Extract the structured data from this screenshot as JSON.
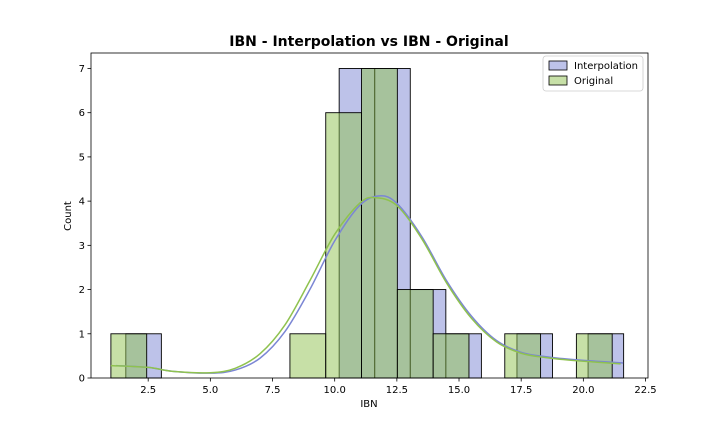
{
  "chart_data": {
    "type": "bar",
    "title": "IBN - Interpolation vs IBN - Original",
    "xlabel": "IBN",
    "ylabel": "Count",
    "xlim": [
      0.2,
      22.6
    ],
    "ylim": [
      0,
      7.35
    ],
    "xticks": [
      2.5,
      5.0,
      7.5,
      10.0,
      12.5,
      15.0,
      17.5,
      20.0,
      22.5
    ],
    "xtick_labels": [
      "2.5",
      "5.0",
      "7.5",
      "10.0",
      "12.5",
      "15.0",
      "17.5",
      "20.0",
      "22.5"
    ],
    "yticks": [
      0,
      1,
      2,
      3,
      4,
      5,
      6,
      7
    ],
    "ytick_labels": [
      "0",
      "1",
      "2",
      "3",
      "4",
      "5",
      "6",
      "7"
    ],
    "grid": false,
    "legend_position": "top-right",
    "series": [
      {
        "name": "Interpolation",
        "color": "#7b86d4",
        "bin_edges": [
          1.6,
          3.03,
          4.46,
          5.89,
          7.32,
          8.75,
          10.18,
          11.61,
          13.04,
          14.47,
          15.9,
          17.33,
          18.76,
          20.19,
          21.62
        ],
        "counts": [
          1,
          0,
          0,
          0,
          0,
          0,
          7,
          7,
          2,
          1,
          0,
          1,
          0,
          1
        ],
        "kde_x": [
          1.2,
          2.5,
          3.5,
          5.0,
          6.0,
          7.0,
          8.0,
          9.0,
          10.0,
          11.0,
          11.8,
          12.5,
          13.5,
          14.5,
          15.5,
          16.5,
          17.5,
          18.5,
          19.5,
          20.5,
          21.6
        ],
        "kde_y": [
          0.28,
          0.24,
          0.15,
          0.11,
          0.18,
          0.45,
          1.05,
          2.0,
          3.1,
          3.9,
          4.12,
          3.95,
          3.2,
          2.2,
          1.4,
          0.85,
          0.58,
          0.48,
          0.42,
          0.38,
          0.34
        ]
      },
      {
        "name": "Original",
        "color": "#8fc24f",
        "bin_edges": [
          1.0,
          2.44,
          3.88,
          5.32,
          6.76,
          8.2,
          9.64,
          11.08,
          12.52,
          13.96,
          15.4,
          16.84,
          18.28,
          19.72,
          21.16
        ],
        "counts": [
          1,
          0,
          0,
          0,
          0,
          1,
          6,
          7,
          2,
          1,
          0,
          1,
          0,
          1
        ],
        "kde_x": [
          1.0,
          2.5,
          3.5,
          5.0,
          6.0,
          7.0,
          8.0,
          9.0,
          10.0,
          11.0,
          11.6,
          12.5,
          13.5,
          14.5,
          15.5,
          16.5,
          17.5,
          18.5,
          19.5,
          20.5,
          21.5
        ],
        "kde_y": [
          0.28,
          0.24,
          0.15,
          0.12,
          0.22,
          0.55,
          1.2,
          2.2,
          3.25,
          3.95,
          4.08,
          3.9,
          3.15,
          2.15,
          1.35,
          0.82,
          0.56,
          0.46,
          0.4,
          0.36,
          0.32
        ]
      }
    ]
  }
}
